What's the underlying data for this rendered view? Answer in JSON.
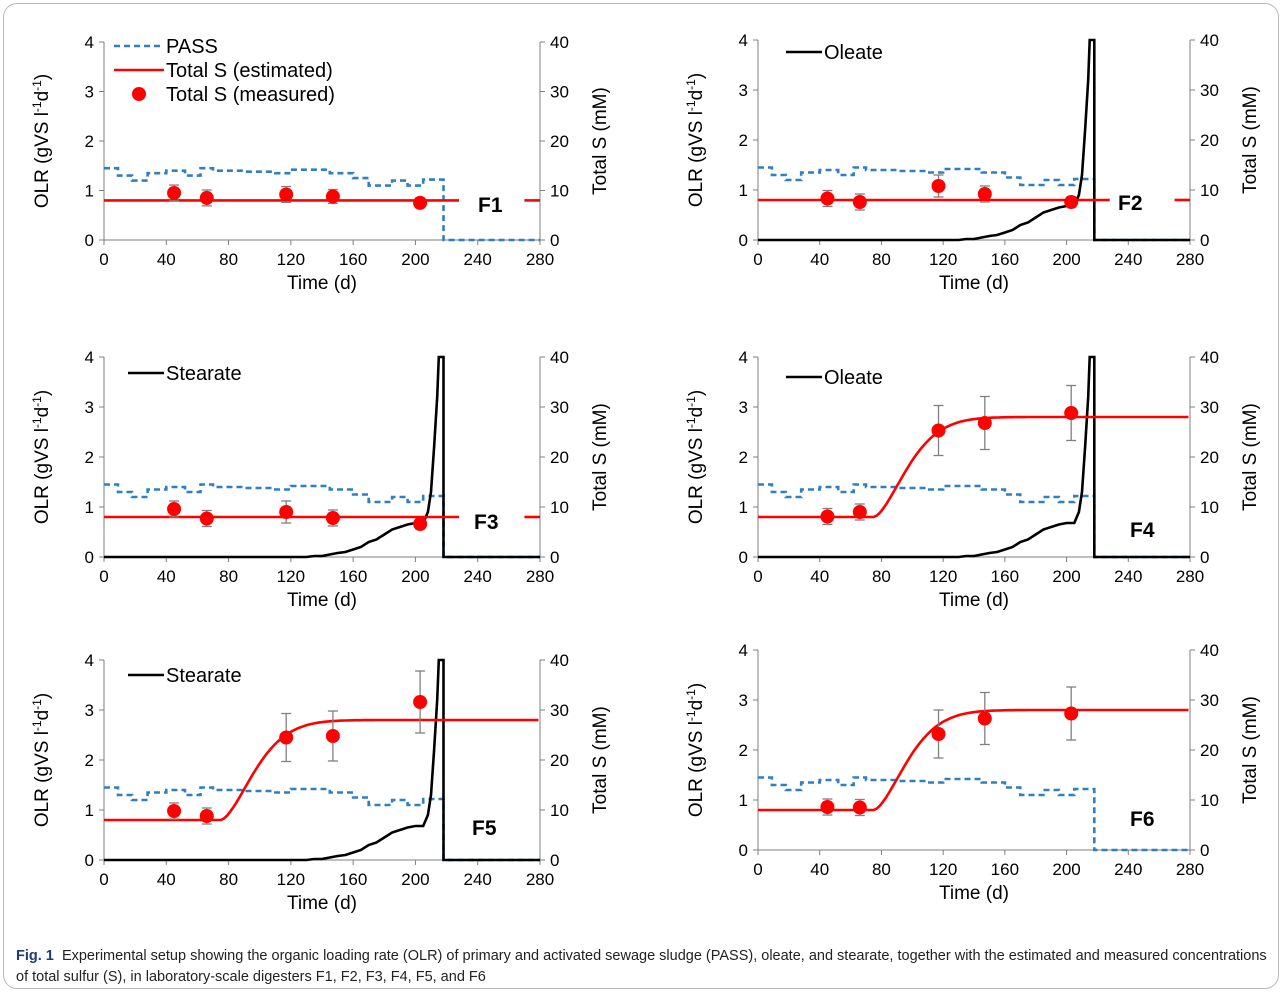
{
  "caption": {
    "label": "Fig. 1",
    "text": "Experimental setup showing the organic loading rate (OLR) of primary and activated sewage sludge (PASS), oleate, and stearate, together with the estimated and measured concentrations of total sulfur (S), in laboratory-scale digesters F1, F2, F3, F4, F5, and F6"
  },
  "colors": {
    "pass": "#2f7fc1",
    "fatty": "#000000",
    "sulfur": "#ff0000",
    "errorbar": "#808080"
  },
  "chart_data": [
    {
      "type": "line",
      "panel": "F1",
      "xlabel": "Time (d)",
      "ylabel": "OLR (gVS l-1d-1)",
      "y2label": "Total S (mM)",
      "xlim": [
        0,
        280
      ],
      "ylim": [
        0,
        4
      ],
      "y2lim": [
        0,
        40
      ],
      "xticks": [
        0,
        40,
        80,
        120,
        160,
        200,
        240,
        280
      ],
      "yticks": [
        0,
        1,
        2,
        3,
        4
      ],
      "y2ticks": [
        0,
        10,
        20,
        30,
        40
      ],
      "legend": [
        "PASS",
        "Total S (estimated)",
        "Total S (measured)"
      ],
      "series": [
        {
          "name": "PASS",
          "style": "dashed",
          "axis": "left",
          "profile": "pass"
        },
        {
          "name": "Total S (estimated)",
          "axis": "right",
          "profile": "flat",
          "level": 8,
          "break": [
            228,
            270
          ]
        },
        {
          "name": "Total S (measured)",
          "axis": "right",
          "x": [
            45,
            66,
            117,
            147,
            203
          ],
          "y": [
            9.5,
            8.5,
            9.2,
            8.8,
            7.5
          ],
          "err": [
            1.6,
            1.6,
            1.6,
            1.4,
            1.0
          ]
        }
      ]
    },
    {
      "type": "line",
      "panel": "F2",
      "xlabel": "Time (d)",
      "ylabel": "OLR (gVS l-1d-1)",
      "y2label": "Total S (mM)",
      "xlim": [
        0,
        280
      ],
      "ylim": [
        0,
        4
      ],
      "y2lim": [
        0,
        40
      ],
      "xticks": [
        0,
        40,
        80,
        120,
        160,
        200,
        240,
        280
      ],
      "yticks": [
        0,
        1,
        2,
        3,
        4
      ],
      "y2ticks": [
        0,
        10,
        20,
        30,
        40
      ],
      "legend": [
        "Oleate"
      ],
      "series": [
        {
          "name": "PASS",
          "style": "dashed",
          "axis": "left",
          "profile": "pass"
        },
        {
          "name": "Oleate",
          "axis": "left",
          "profile": "fatty"
        },
        {
          "name": "Total S (estimated)",
          "axis": "right",
          "profile": "flat",
          "level": 8,
          "break": [
            228,
            270
          ]
        },
        {
          "name": "Total S (measured)",
          "axis": "right",
          "x": [
            45,
            66,
            117,
            147,
            203
          ],
          "y": [
            8.3,
            7.6,
            10.8,
            9.2,
            7.6
          ],
          "err": [
            1.6,
            1.6,
            2.2,
            1.6,
            1.0
          ]
        }
      ]
    },
    {
      "type": "line",
      "panel": "F3",
      "xlabel": "Time (d)",
      "ylabel": "OLR (gVS l-1d-1)",
      "y2label": "Total S (mM)",
      "xlim": [
        0,
        280
      ],
      "ylim": [
        0,
        4
      ],
      "y2lim": [
        0,
        40
      ],
      "xticks": [
        0,
        40,
        80,
        120,
        160,
        200,
        240,
        280
      ],
      "yticks": [
        0,
        1,
        2,
        3,
        4
      ],
      "y2ticks": [
        0,
        10,
        20,
        30,
        40
      ],
      "legend": [
        "Stearate"
      ],
      "series": [
        {
          "name": "PASS",
          "style": "dashed",
          "axis": "left",
          "profile": "pass"
        },
        {
          "name": "Stearate",
          "axis": "left",
          "profile": "fatty"
        },
        {
          "name": "Total S (estimated)",
          "axis": "right",
          "profile": "flat",
          "level": 8,
          "break": [
            228,
            270
          ]
        },
        {
          "name": "Total S (measured)",
          "axis": "right",
          "x": [
            45,
            66,
            117,
            147,
            203
          ],
          "y": [
            9.6,
            7.7,
            9.0,
            7.8,
            6.6
          ],
          "err": [
            1.6,
            1.6,
            2.2,
            1.6,
            1.0
          ]
        }
      ]
    },
    {
      "type": "line",
      "panel": "F4",
      "xlabel": "Time (d)",
      "ylabel": "OLR (gVS l-1d-1)",
      "y2label": "Total S (mM)",
      "xlim": [
        0,
        280
      ],
      "ylim": [
        0,
        4
      ],
      "y2lim": [
        0,
        40
      ],
      "xticks": [
        0,
        40,
        80,
        120,
        160,
        200,
        240,
        280
      ],
      "yticks": [
        0,
        1,
        2,
        3,
        4
      ],
      "y2ticks": [
        0,
        10,
        20,
        30,
        40
      ],
      "legend": [
        "Oleate"
      ],
      "series": [
        {
          "name": "PASS",
          "style": "dashed",
          "axis": "left",
          "profile": "pass"
        },
        {
          "name": "Oleate",
          "axis": "left",
          "profile": "fatty"
        },
        {
          "name": "Total S (estimated)",
          "axis": "right",
          "profile": "sigmoid",
          "low": 8,
          "high": 28,
          "start": 75
        },
        {
          "name": "Total S (measured)",
          "axis": "right",
          "x": [
            45,
            66,
            117,
            147,
            203
          ],
          "y": [
            8.1,
            9.0,
            25.3,
            26.8,
            28.8
          ],
          "err": [
            1.6,
            1.6,
            5.0,
            5.3,
            5.5
          ]
        }
      ]
    },
    {
      "type": "line",
      "panel": "F5",
      "xlabel": "Time (d)",
      "ylabel": "OLR (gVS l-1d-1)",
      "y2label": "Total S (mM)",
      "xlim": [
        0,
        280
      ],
      "ylim": [
        0,
        4
      ],
      "y2lim": [
        0,
        40
      ],
      "xticks": [
        0,
        40,
        80,
        120,
        160,
        200,
        240,
        280
      ],
      "yticks": [
        0,
        1,
        2,
        3,
        4
      ],
      "y2ticks": [
        0,
        10,
        20,
        30,
        40
      ],
      "legend": [
        "Stearate"
      ],
      "series": [
        {
          "name": "PASS",
          "style": "dashed",
          "axis": "left",
          "profile": "pass"
        },
        {
          "name": "Stearate",
          "axis": "left",
          "profile": "fatty"
        },
        {
          "name": "Total S (estimated)",
          "axis": "right",
          "profile": "sigmoid",
          "low": 8,
          "high": 28,
          "start": 75
        },
        {
          "name": "Total S (measured)",
          "axis": "right",
          "x": [
            45,
            66,
            117,
            147,
            203
          ],
          "y": [
            9.8,
            8.8,
            24.5,
            24.8,
            31.6
          ],
          "err": [
            1.6,
            1.6,
            4.8,
            5.0,
            6.2
          ]
        }
      ]
    },
    {
      "type": "line",
      "panel": "F6",
      "xlabel": "Time (d)",
      "ylabel": "OLR (gVS l-1d-1)",
      "y2label": "Total S (mM)",
      "xlim": [
        0,
        280
      ],
      "ylim": [
        0,
        4
      ],
      "y2lim": [
        0,
        40
      ],
      "xticks": [
        0,
        40,
        80,
        120,
        160,
        200,
        240,
        280
      ],
      "yticks": [
        0,
        1,
        2,
        3,
        4
      ],
      "y2ticks": [
        0,
        10,
        20,
        30,
        40
      ],
      "legend": [],
      "series": [
        {
          "name": "PASS",
          "style": "dashed",
          "axis": "left",
          "profile": "pass"
        },
        {
          "name": "Total S (estimated)",
          "axis": "right",
          "profile": "sigmoid",
          "low": 8,
          "high": 28,
          "start": 75
        },
        {
          "name": "Total S (measured)",
          "axis": "right",
          "x": [
            45,
            66,
            117,
            147,
            203
          ],
          "y": [
            8.6,
            8.5,
            23.2,
            26.3,
            27.3
          ],
          "err": [
            1.6,
            1.6,
            4.8,
            5.2,
            5.3
          ]
        }
      ]
    }
  ],
  "profiles": {
    "pass": {
      "x": [
        0,
        9,
        9,
        18,
        18,
        28,
        28,
        40,
        40,
        52,
        52,
        62,
        62,
        70,
        70,
        90,
        90,
        110,
        110,
        120,
        120,
        145,
        145,
        160,
        160,
        170,
        170,
        185,
        185,
        195,
        195,
        205,
        205,
        218,
        218,
        280
      ],
      "y": [
        1.45,
        1.45,
        1.3,
        1.3,
        1.2,
        1.2,
        1.35,
        1.35,
        1.4,
        1.4,
        1.3,
        1.3,
        1.45,
        1.45,
        1.4,
        1.4,
        1.38,
        1.38,
        1.35,
        1.35,
        1.42,
        1.42,
        1.35,
        1.35,
        1.25,
        1.25,
        1.1,
        1.1,
        1.2,
        1.2,
        1.1,
        1.1,
        1.22,
        1.22,
        0,
        0
      ]
    },
    "fatty": {
      "x": [
        0,
        130,
        135,
        140,
        145,
        150,
        155,
        160,
        165,
        170,
        175,
        180,
        185,
        190,
        195,
        200,
        205,
        208,
        210,
        212,
        214,
        215,
        217,
        218,
        218,
        280
      ],
      "y": [
        0,
        0,
        0.02,
        0.02,
        0.05,
        0.08,
        0.1,
        0.15,
        0.2,
        0.3,
        0.35,
        0.45,
        0.55,
        0.6,
        0.65,
        0.68,
        0.68,
        0.9,
        1.3,
        2.2,
        3.2,
        4.0,
        4.0,
        4.0,
        0,
        0
      ]
    }
  },
  "panel_labels": {
    "ylabel_base": "OLR (gVS l",
    "ylabel_sup1": "-1",
    "ylabel_mid": "d",
    "ylabel_sup2": "-1",
    "ylabel_end": ")"
  }
}
